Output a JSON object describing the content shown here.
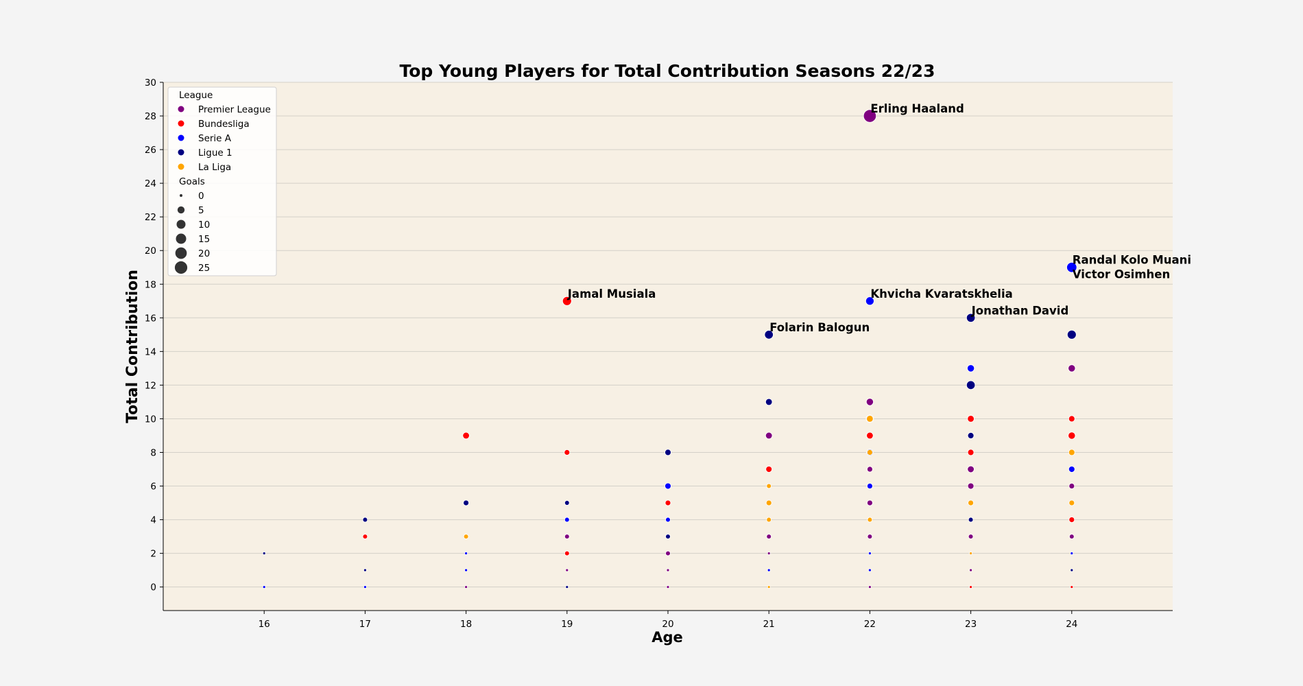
{
  "colors": {
    "figure_bg": "#f4f4f4",
    "plot_bg": "#f7f0e4",
    "grid": "#d4d0c8",
    "axis": "#000000",
    "Premier League": "#800080",
    "Bundesliga": "#ff0000",
    "Serie A": "#0000ff",
    "Ligue 1": "#000080",
    "La Liga": "#ffa500"
  },
  "chart_data": {
    "type": "scatter",
    "title": "Top Young Players for Total Contribution Seasons 22/23",
    "xlabel": "Age",
    "ylabel": "Total Contribution",
    "xlim": [
      15,
      25
    ],
    "ylim": [
      -1.4,
      30
    ],
    "xticks": [
      16,
      17,
      18,
      19,
      20,
      21,
      22,
      23,
      24
    ],
    "yticks": [
      0,
      2,
      4,
      6,
      8,
      10,
      12,
      14,
      16,
      18,
      20,
      22,
      24,
      26,
      28,
      30
    ],
    "grid": "horizontal",
    "legend_position": "top-left",
    "legend": {
      "league_title": "League",
      "leagues": [
        "Premier League",
        "Bundesliga",
        "Serie A",
        "Ligue 1",
        "La Liga"
      ],
      "goals_title": "Goals",
      "goals_levels": [
        0,
        5,
        10,
        15,
        20,
        25
      ]
    },
    "series": [
      {
        "name": "Premier League",
        "points": [
          {
            "x": 18,
            "y": 0,
            "goals": 0
          },
          {
            "x": 19,
            "y": 1,
            "goals": 0
          },
          {
            "x": 19,
            "y": 3,
            "goals": 1
          },
          {
            "x": 20,
            "y": 0,
            "goals": 0
          },
          {
            "x": 20,
            "y": 1,
            "goals": 0
          },
          {
            "x": 20,
            "y": 2,
            "goals": 1
          },
          {
            "x": 20,
            "y": 5,
            "goals": 2
          },
          {
            "x": 21,
            "y": 2,
            "goals": 0
          },
          {
            "x": 21,
            "y": 3,
            "goals": 1
          },
          {
            "x": 21,
            "y": 9,
            "goals": 4
          },
          {
            "x": 21,
            "y": 15,
            "goals": 8
          },
          {
            "x": 22,
            "y": 0,
            "goals": 0
          },
          {
            "x": 22,
            "y": 3,
            "goals": 1
          },
          {
            "x": 22,
            "y": 5,
            "goals": 2
          },
          {
            "x": 22,
            "y": 7,
            "goals": 2
          },
          {
            "x": 22,
            "y": 11,
            "goals": 5
          },
          {
            "x": 22,
            "y": 28,
            "goals": 26
          },
          {
            "x": 23,
            "y": 1,
            "goals": 0
          },
          {
            "x": 23,
            "y": 3,
            "goals": 1
          },
          {
            "x": 23,
            "y": 6,
            "goals": 3
          },
          {
            "x": 23,
            "y": 7,
            "goals": 4
          },
          {
            "x": 24,
            "y": 3,
            "goals": 1
          },
          {
            "x": 24,
            "y": 6,
            "goals": 2
          },
          {
            "x": 24,
            "y": 13,
            "goals": 5
          }
        ]
      },
      {
        "name": "Bundesliga",
        "points": [
          {
            "x": 17,
            "y": 3,
            "goals": 1
          },
          {
            "x": 18,
            "y": 9,
            "goals": 4
          },
          {
            "x": 19,
            "y": 2,
            "goals": 1
          },
          {
            "x": 19,
            "y": 8,
            "goals": 2
          },
          {
            "x": 19,
            "y": 17,
            "goals": 10
          },
          {
            "x": 20,
            "y": 5,
            "goals": 2
          },
          {
            "x": 21,
            "y": 7,
            "goals": 3
          },
          {
            "x": 22,
            "y": 9,
            "goals": 4
          },
          {
            "x": 23,
            "y": 0,
            "goals": 0
          },
          {
            "x": 23,
            "y": 8,
            "goals": 3
          },
          {
            "x": 23,
            "y": 10,
            "goals": 4
          },
          {
            "x": 24,
            "y": 0,
            "goals": 0
          },
          {
            "x": 24,
            "y": 4,
            "goals": 2
          },
          {
            "x": 24,
            "y": 9,
            "goals": 5
          },
          {
            "x": 24,
            "y": 10,
            "goals": 3
          }
        ]
      },
      {
        "name": "Serie A",
        "points": [
          {
            "x": 16,
            "y": 0,
            "goals": 0
          },
          {
            "x": 17,
            "y": 0,
            "goals": 0
          },
          {
            "x": 18,
            "y": 1,
            "goals": 0
          },
          {
            "x": 18,
            "y": 2,
            "goals": 0
          },
          {
            "x": 19,
            "y": 4,
            "goals": 1
          },
          {
            "x": 20,
            "y": 4,
            "goals": 1
          },
          {
            "x": 20,
            "y": 6,
            "goals": 3
          },
          {
            "x": 21,
            "y": 1,
            "goals": 0
          },
          {
            "x": 22,
            "y": 1,
            "goals": 0
          },
          {
            "x": 22,
            "y": 2,
            "goals": 0
          },
          {
            "x": 22,
            "y": 6,
            "goals": 2
          },
          {
            "x": 22,
            "y": 17,
            "goals": 8
          },
          {
            "x": 23,
            "y": 13,
            "goals": 5
          },
          {
            "x": 24,
            "y": 2,
            "goals": 0
          },
          {
            "x": 24,
            "y": 7,
            "goals": 3
          },
          {
            "x": 24,
            "y": 19,
            "goals": 14
          }
        ]
      },
      {
        "name": "Ligue 1",
        "points": [
          {
            "x": 16,
            "y": 2,
            "goals": 0
          },
          {
            "x": 17,
            "y": 1,
            "goals": 0
          },
          {
            "x": 17,
            "y": 4,
            "goals": 1
          },
          {
            "x": 18,
            "y": 5,
            "goals": 2
          },
          {
            "x": 19,
            "y": 0,
            "goals": 0
          },
          {
            "x": 19,
            "y": 5,
            "goals": 1
          },
          {
            "x": 20,
            "y": 3,
            "goals": 1
          },
          {
            "x": 20,
            "y": 8,
            "goals": 3
          },
          {
            "x": 21,
            "y": 11,
            "goals": 4
          },
          {
            "x": 21,
            "y": 15,
            "goals": 9
          },
          {
            "x": 22,
            "y": 4,
            "goals": 1
          },
          {
            "x": 22,
            "y": 8,
            "goals": 4
          },
          {
            "x": 22,
            "y": 10,
            "goals": 6
          },
          {
            "x": 23,
            "y": 4,
            "goals": 1
          },
          {
            "x": 23,
            "y": 9,
            "goals": 3
          },
          {
            "x": 23,
            "y": 12,
            "goals": 9
          },
          {
            "x": 23,
            "y": 16,
            "goals": 9
          },
          {
            "x": 24,
            "y": 1,
            "goals": 0
          },
          {
            "x": 24,
            "y": 15,
            "goals": 10
          }
        ]
      },
      {
        "name": "La Liga",
        "points": [
          {
            "x": 18,
            "y": 3,
            "goals": 1
          },
          {
            "x": 21,
            "y": 0,
            "goals": 0
          },
          {
            "x": 21,
            "y": 4,
            "goals": 1
          },
          {
            "x": 21,
            "y": 5,
            "goals": 2
          },
          {
            "x": 21,
            "y": 6,
            "goals": 1
          },
          {
            "x": 22,
            "y": 4,
            "goals": 1
          },
          {
            "x": 22,
            "y": 8,
            "goals": 2
          },
          {
            "x": 22,
            "y": 10,
            "goals": 4
          },
          {
            "x": 23,
            "y": 2,
            "goals": 0
          },
          {
            "x": 23,
            "y": 5,
            "goals": 2
          },
          {
            "x": 24,
            "y": 5,
            "goals": 2
          },
          {
            "x": 24,
            "y": 8,
            "goals": 3
          }
        ]
      }
    ],
    "annotations": [
      {
        "text": "Erling Haaland",
        "x": 22,
        "y": 28
      },
      {
        "text": "Randal Kolo Muani",
        "x": 24,
        "y": 19
      },
      {
        "text": "Victor Osimhen",
        "x": 24,
        "y": 19
      },
      {
        "text": "Jamal Musiala",
        "x": 19,
        "y": 17
      },
      {
        "text": "Khvicha Kvaratskhelia",
        "x": 22,
        "y": 17
      },
      {
        "text": "Jonathan David",
        "x": 23,
        "y": 16
      },
      {
        "text": "Folarin Balogun",
        "x": 21,
        "y": 15
      }
    ]
  }
}
